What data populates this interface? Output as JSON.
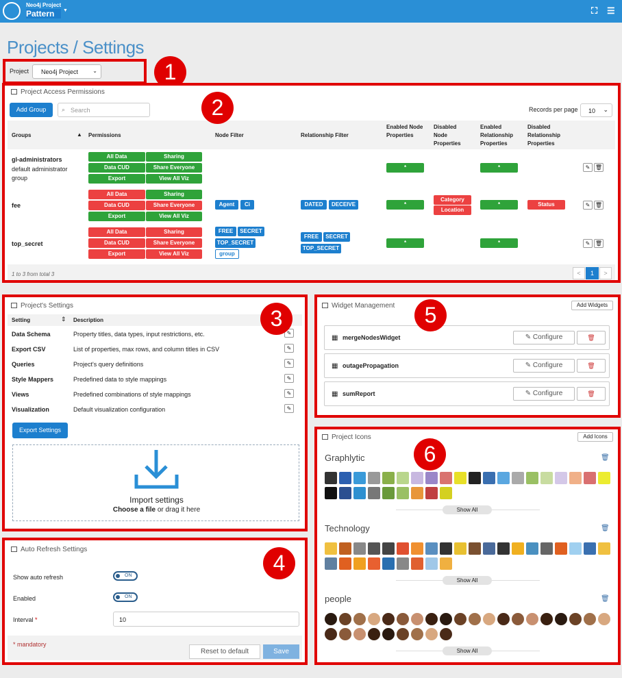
{
  "topbar": {
    "project_small": "Neo4j Project",
    "project_name": "Pattern"
  },
  "page_title": "Projects / Settings",
  "project_select": {
    "label": "Project",
    "value": "Neo4j Project"
  },
  "callouts": [
    "1",
    "2",
    "3",
    "4",
    "5",
    "6"
  ],
  "access": {
    "title": "Project Access Permissions",
    "add_group": "Add Group",
    "search_placeholder": "Search",
    "records_label": "Records per page",
    "records_value": "10",
    "headers": [
      "Groups",
      "Permissions",
      "Node Filter",
      "Relationship Filter",
      "Enabled Node Properties",
      "Disabled Node Properties",
      "Enabled Relationship Properties",
      "Disabled Relationship Properties"
    ],
    "rows": [
      {
        "name": "gl-administrators",
        "desc": "default administrator group",
        "perms": [
          "All Data",
          "Sharing",
          "Data CUD",
          "Share Everyone",
          "Export",
          "View All Viz"
        ]
      },
      {
        "name": "fee",
        "perms": [
          "All Data",
          "Sharing",
          "Data CUD",
          "Share Everyone",
          "Export",
          "View All Viz"
        ],
        "node_filter": [
          "Agent",
          "Ci"
        ],
        "rel_filter": [
          "DATED",
          "DECEIVE"
        ],
        "disabled_node": [
          "Category",
          "Location"
        ],
        "disabled_rel": [
          "Status"
        ]
      },
      {
        "name": "top_secret",
        "perms": [
          "All Data",
          "Sharing",
          "Data CUD",
          "Share Everyone",
          "Export",
          "View All Viz"
        ],
        "node_filter": [
          "FREE",
          "SECRET",
          "TOP_SECRET",
          "group"
        ],
        "rel_filter": [
          "FREE",
          "SECRET",
          "TOP_SECRET"
        ]
      }
    ],
    "star": "*",
    "footer": "1 to 3 from total 3",
    "pager": [
      "<",
      "1",
      ">"
    ]
  },
  "settings": {
    "title": "Project's Settings",
    "col_setting": "Setting",
    "col_desc": "Description",
    "rows": [
      {
        "name": "Data Schema",
        "desc": "Property titles, data types, input restrictions, etc."
      },
      {
        "name": "Export CSV",
        "desc": "List of properties, max rows, and column titles in CSV"
      },
      {
        "name": "Queries",
        "desc": "Project's query definitions"
      },
      {
        "name": "Style Mappers",
        "desc": "Predefined data to style mappings"
      },
      {
        "name": "Views",
        "desc": "Predefined combinations of style mappings"
      },
      {
        "name": "Visualization",
        "desc": "Default visualization configuration"
      }
    ],
    "export_btn": "Export Settings",
    "import_title": "Import settings",
    "choose": "Choose a file",
    "drag": " or drag it here"
  },
  "auto_refresh": {
    "title": "Auto Refresh Settings",
    "show_label": "Show auto refresh",
    "enabled_label": "Enabled",
    "interval_label": "Interval",
    "required_star": "*",
    "toggle_text": "ON",
    "interval_value": "10",
    "mandatory": "* mandatory",
    "reset": "Reset to default",
    "save": "Save"
  },
  "widgets": {
    "title": "Widget Management",
    "add": "Add Widgets",
    "configure": "Configure",
    "items": [
      "mergeNodesWidget",
      "outagePropagation",
      "sumReport"
    ]
  },
  "icons": {
    "title": "Project Icons",
    "add": "Add Icons",
    "show_all": "Show All",
    "sets": [
      "Graphlytic",
      "Technology",
      "people"
    ]
  }
}
